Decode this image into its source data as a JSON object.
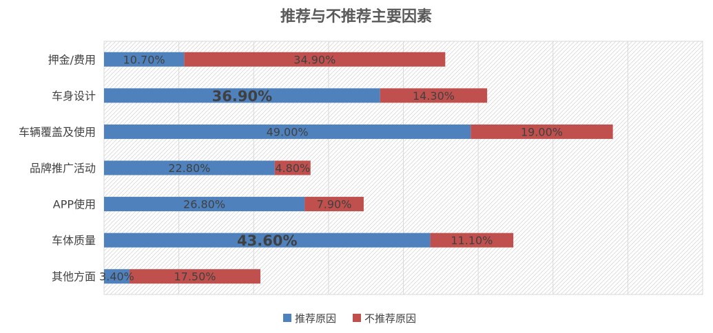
{
  "chart_data": {
    "type": "bar",
    "orientation": "horizontal",
    "stacked": true,
    "title": "推荐与不推荐主要因素",
    "categories": [
      "押金/费用",
      "车身设计",
      "车辆覆盖及使用",
      "品牌推广活动",
      "APP使用",
      "车体质量",
      "其他方面"
    ],
    "series": [
      {
        "name": "推荐原因",
        "color": "#4F81BD",
        "values": [
          10.7,
          36.9,
          49.0,
          22.8,
          26.8,
          43.6,
          3.4
        ],
        "labels": [
          "10.70%",
          "36.90%",
          "49.00%",
          "22.80%",
          "26.80%",
          "43.60%",
          "3.40%"
        ]
      },
      {
        "name": "不推荐原因",
        "color": "#C0504D",
        "values": [
          34.9,
          14.3,
          19.0,
          4.8,
          7.9,
          11.1,
          17.5
        ],
        "labels": [
          "34.90%",
          "14.30%",
          "19.00%",
          "4.80%",
          "7.90%",
          "11.10%",
          "17.50%"
        ]
      }
    ],
    "emphasized_labels": [
      "36.90%",
      "43.60%"
    ],
    "xlim": [
      0,
      80
    ],
    "grid": true,
    "legend_position": "bottom"
  }
}
